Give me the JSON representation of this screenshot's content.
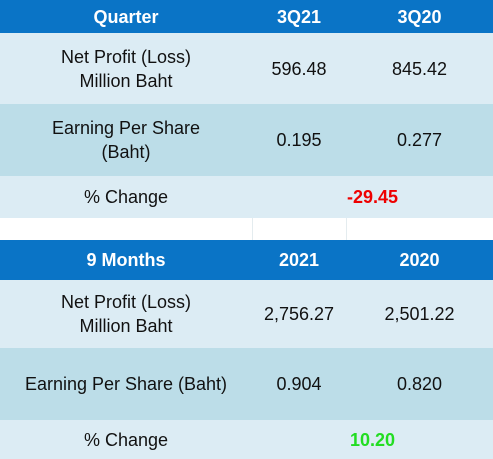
{
  "quarter_table": {
    "headers": [
      "Quarter",
      "3Q21",
      "3Q20"
    ],
    "rows": [
      {
        "label_lines": [
          "Net Profit (Loss)",
          "Million Baht"
        ],
        "values": [
          "596.48",
          "845.42"
        ]
      },
      {
        "label_lines": [
          "Earning Per Share",
          "(Baht)"
        ],
        "values": [
          "0.195",
          "0.277"
        ]
      }
    ],
    "change": {
      "label": "% Change",
      "value": "-29.45",
      "color": "#ee0000"
    }
  },
  "nine_months_table": {
    "headers": [
      "9 Months",
      "2021",
      "2020"
    ],
    "rows": [
      {
        "label_lines": [
          "Net Profit (Loss)",
          "Million Baht"
        ],
        "values": [
          "2,756.27",
          "2,501.22"
        ]
      },
      {
        "label_lines": [
          "Earning Per Share (Baht)"
        ],
        "values": [
          "0.904",
          "0.820"
        ]
      }
    ],
    "change": {
      "label": "% Change",
      "value": "10.20",
      "color": "#22dd22"
    }
  },
  "colors": {
    "header_bg": "#0a74c6",
    "row_light": "#dcecf4",
    "row_mid": "#bcdde8"
  }
}
